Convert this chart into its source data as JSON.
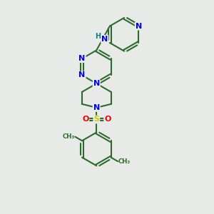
{
  "background_color": "#e8eae8",
  "bond_color": "#2d6b2d",
  "N_color": "#0000ee",
  "H_color": "#008888",
  "S_color": "#cccc00",
  "O_color": "#ee0000",
  "figsize": [
    3.0,
    3.0
  ],
  "dpi": 100,
  "lw": 1.5,
  "fs": 8.0,
  "fs_small": 7.0,
  "xlim": [
    -3.5,
    3.5
  ],
  "ylim": [
    -5.5,
    5.5
  ]
}
